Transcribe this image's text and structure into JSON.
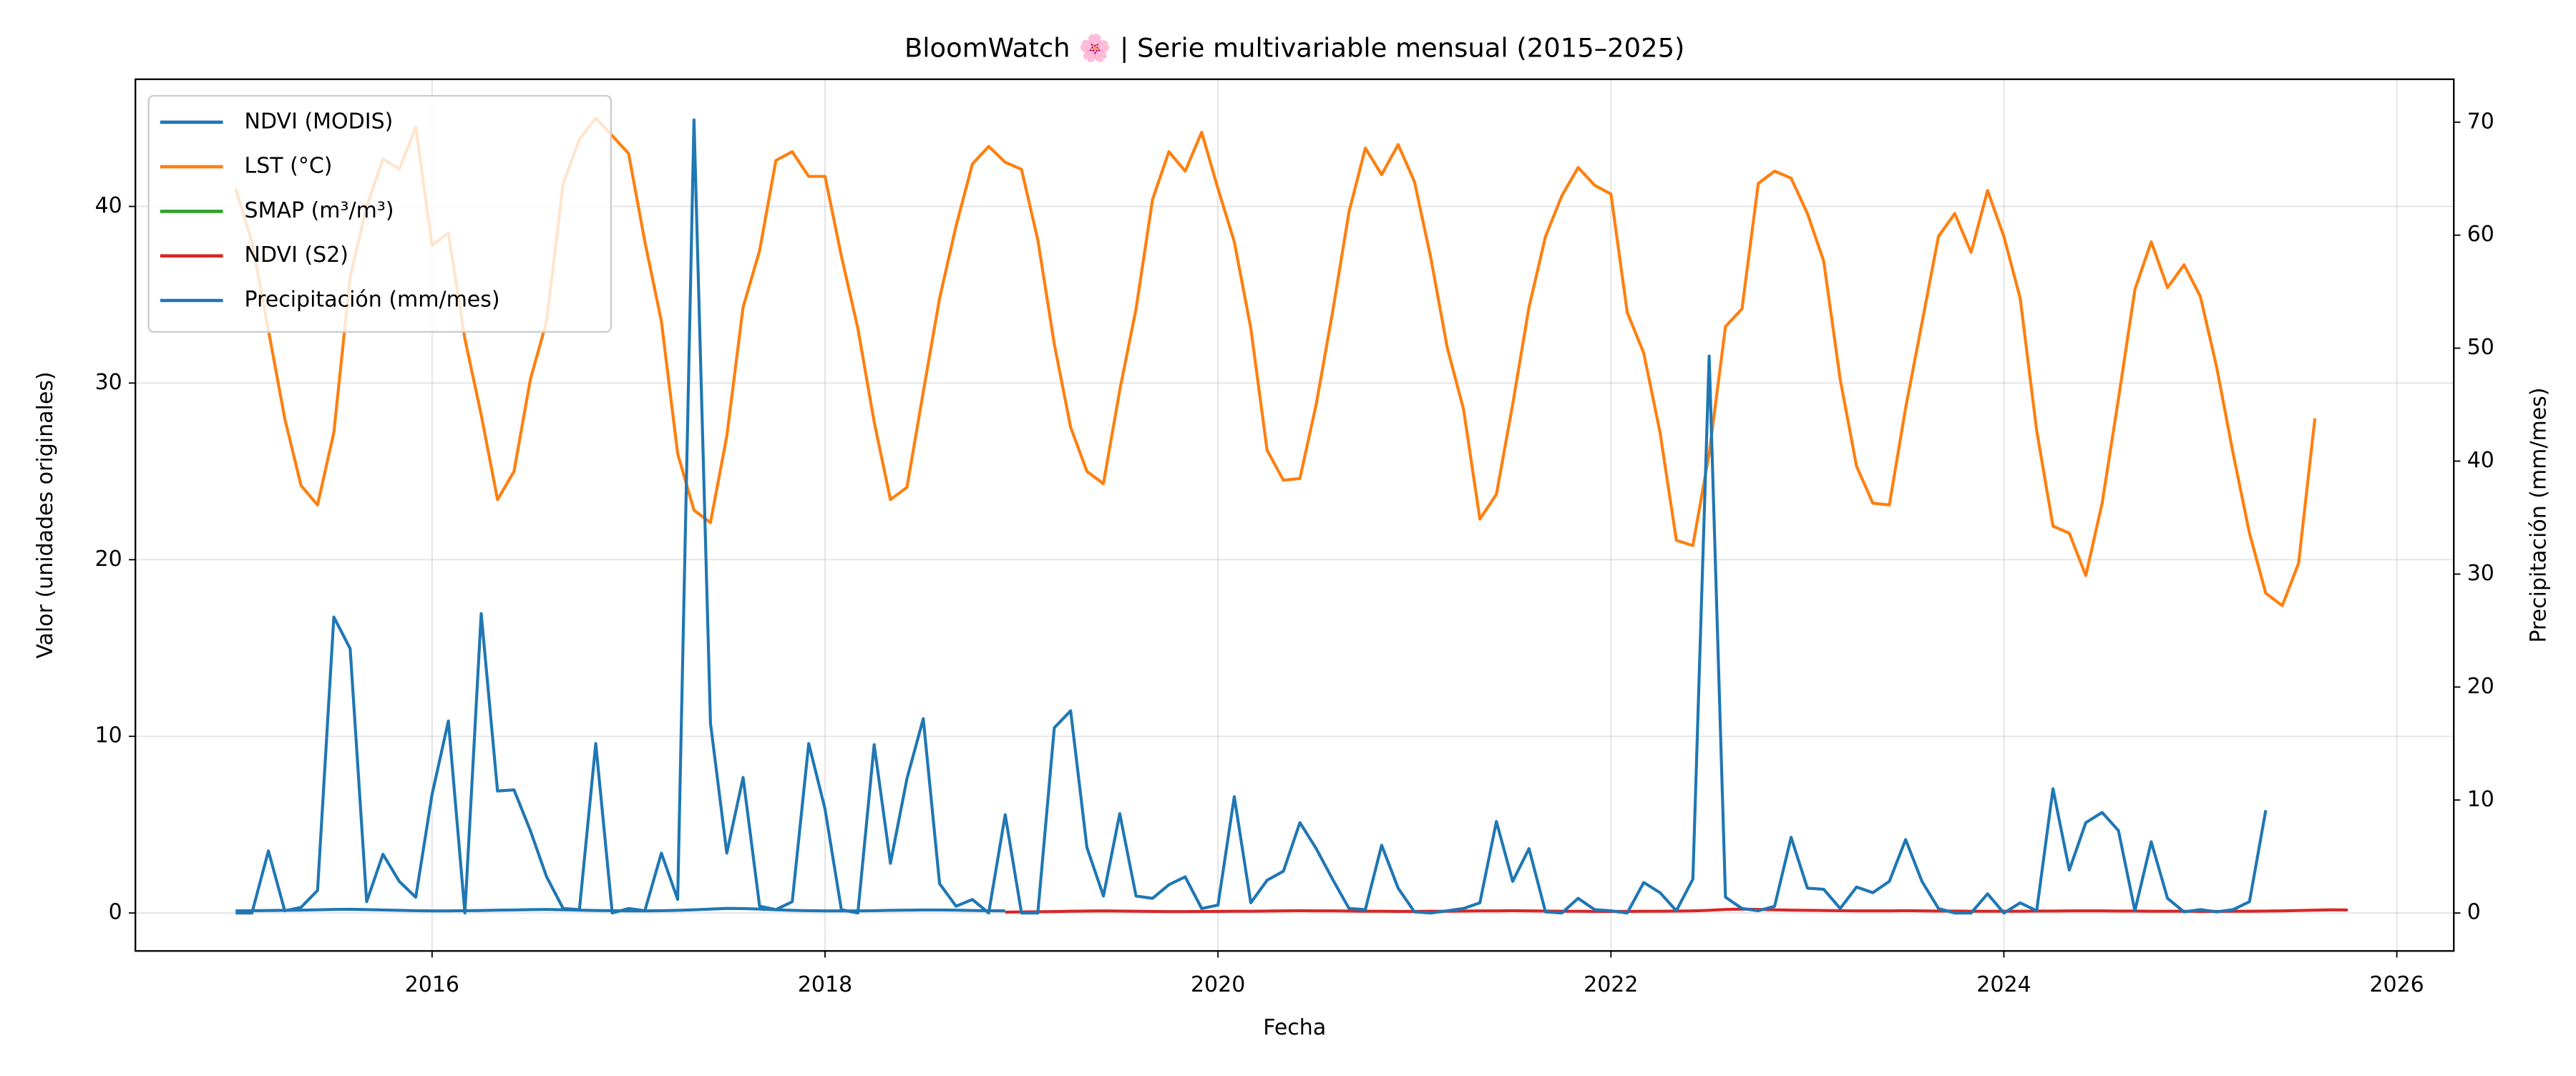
{
  "chart_data": {
    "type": "line",
    "title": "BloomWatch 🌸 | Serie multivariable mensual (2015–2025)",
    "xlabel": "Fecha",
    "ylabel": "Valor (unidades originales)",
    "y2label": "Precipitación (mm/mes)",
    "x": [
      2015.0,
      2015.083,
      2015.167,
      2015.25,
      2015.333,
      2015.417,
      2015.5,
      2015.583,
      2015.667,
      2015.75,
      2015.833,
      2015.917,
      2016.0,
      2016.083,
      2016.167,
      2016.25,
      2016.333,
      2016.417,
      2016.5,
      2016.583,
      2016.667,
      2016.75,
      2016.833,
      2016.917,
      2017.0,
      2017.083,
      2017.167,
      2017.25,
      2017.333,
      2017.417,
      2017.5,
      2017.583,
      2017.667,
      2017.75,
      2017.833,
      2017.917,
      2018.0,
      2018.083,
      2018.167,
      2018.25,
      2018.333,
      2018.417,
      2018.5,
      2018.583,
      2018.667,
      2018.75,
      2018.833,
      2018.917,
      2019.0,
      2019.083,
      2019.167,
      2019.25,
      2019.333,
      2019.417,
      2019.5,
      2019.583,
      2019.667,
      2019.75,
      2019.833,
      2019.917,
      2020.0,
      2020.083,
      2020.167,
      2020.25,
      2020.333,
      2020.417,
      2020.5,
      2020.583,
      2020.667,
      2020.75,
      2020.833,
      2020.917,
      2021.0,
      2021.083,
      2021.167,
      2021.25,
      2021.333,
      2021.417,
      2021.5,
      2021.583,
      2021.667,
      2021.75,
      2021.833,
      2021.917,
      2022.0,
      2022.083,
      2022.167,
      2022.25,
      2022.333,
      2022.417,
      2022.5,
      2022.583,
      2022.667,
      2022.75,
      2022.833,
      2022.917,
      2023.0,
      2023.083,
      2023.167,
      2023.25,
      2023.333,
      2023.417,
      2023.5,
      2023.583,
      2023.667,
      2023.75,
      2023.833,
      2023.917,
      2024.0,
      2024.083,
      2024.167,
      2024.25,
      2024.333,
      2024.417,
      2024.5,
      2024.583,
      2024.667,
      2024.75,
      2024.833,
      2024.917,
      2025.0,
      2025.083,
      2025.167,
      2025.25,
      2025.333,
      2025.417,
      2025.5,
      2025.583,
      2025.667,
      2025.75
    ],
    "series": [
      {
        "name": "NDVI (MODIS)",
        "color": "#1f77b4",
        "axis": "y",
        "values": [
          0.12,
          0.13,
          0.14,
          0.15,
          0.16,
          0.18,
          0.2,
          0.21,
          0.19,
          0.17,
          0.15,
          0.13,
          0.12,
          0.12,
          0.13,
          0.14,
          0.16,
          0.17,
          0.19,
          0.2,
          0.18,
          0.16,
          0.14,
          0.13,
          0.12,
          0.12,
          0.13,
          0.15,
          0.18,
          0.22,
          0.26,
          0.25,
          0.22,
          0.18,
          0.15,
          0.13,
          0.12,
          0.12,
          0.12,
          0.13,
          0.15,
          0.16,
          0.17,
          0.17,
          0.16,
          0.14,
          0.13,
          0.12,
          null,
          null,
          null,
          null,
          null,
          null,
          null,
          null,
          null,
          null,
          null,
          null,
          null,
          null,
          null,
          null,
          null,
          null,
          null,
          null,
          null,
          null,
          null,
          null,
          null,
          null,
          null,
          null,
          null,
          null,
          null,
          null,
          null,
          null,
          null,
          null,
          null,
          null,
          null,
          null,
          null,
          null,
          null,
          null,
          null,
          null,
          null,
          null,
          null,
          null,
          null,
          null,
          null,
          null,
          null,
          null,
          null,
          null,
          null,
          null,
          null,
          null,
          null,
          null,
          null,
          null,
          null,
          null,
          null,
          null,
          null,
          null,
          null,
          null,
          null,
          null,
          null,
          null,
          null,
          null,
          null,
          null
        ]
      },
      {
        "name": "LST (°C)",
        "color": "#ff7f0e",
        "axis": "y",
        "values": [
          41,
          38,
          33,
          28,
          24.2,
          23.1,
          27.2,
          36,
          40,
          42.7,
          42.1,
          44.5,
          37.8,
          38.5,
          32.5,
          28.2,
          23.4,
          25,
          30.2,
          33.5,
          41.3,
          43.8,
          45,
          44,
          43,
          38,
          33.5,
          26,
          22.8,
          22.1,
          27,
          34.3,
          37.5,
          42.6,
          43.1,
          41.7,
          41.7,
          37.2,
          33.1,
          27.8,
          23.4,
          24.1,
          29.5,
          34.8,
          38.9,
          42.4,
          43.4,
          42.5,
          42.1,
          38.1,
          32.2,
          27.5,
          25,
          24.3,
          29.6,
          34.2,
          40.4,
          43.1,
          42,
          44.2,
          41,
          38,
          33.1,
          26.2,
          24.5,
          24.6,
          28.8,
          34,
          39.7,
          43.3,
          41.8,
          43.5,
          41.4,
          37.1,
          32,
          28.5,
          22.3,
          23.7,
          28.8,
          34.3,
          38.3,
          40.6,
          42.2,
          41.2,
          40.7,
          34,
          31.7,
          27.2,
          21.1,
          20.8,
          26,
          33.2,
          34.2,
          41.3,
          42,
          41.6,
          39.6,
          36.9,
          30.2,
          25.3,
          23.2,
          23.1,
          28.6,
          33.4,
          38.3,
          39.6,
          37.4,
          40.9,
          38.3,
          34.8,
          27.3,
          21.9,
          21.5,
          19.1,
          23.2,
          29.1,
          35.3,
          38,
          35.4,
          36.7,
          34.9,
          30.9,
          26,
          21.5,
          18.1,
          17.4,
          19.8,
          28,
          null,
          null
        ]
      },
      {
        "name": "SMAP (m³/m³)",
        "color": "#2ca02c",
        "axis": "y",
        "values": [
          null,
          null,
          null,
          null,
          null,
          null,
          null,
          null,
          null,
          null,
          null,
          null,
          null,
          null,
          null,
          null,
          null,
          null,
          null,
          null,
          null,
          null,
          null,
          null,
          null,
          null,
          null,
          null,
          null,
          null,
          null,
          null,
          null,
          null,
          null,
          null,
          null,
          null,
          null,
          null,
          null,
          null,
          null,
          null,
          null,
          null,
          null,
          null,
          null,
          null,
          null,
          null,
          null,
          null,
          null,
          null,
          null,
          null,
          null,
          null,
          null,
          null,
          null,
          null,
          null,
          null,
          null,
          null,
          null,
          null,
          null,
          null,
          null,
          null,
          null,
          null,
          null,
          null,
          null,
          null,
          null,
          null,
          null,
          null,
          null,
          null,
          null,
          null,
          null,
          null,
          null,
          null,
          null,
          null,
          null,
          null,
          null,
          null,
          null,
          null,
          null,
          null,
          null,
          null,
          null,
          null,
          null,
          null,
          null,
          null,
          null,
          null,
          null,
          null,
          null,
          null,
          null,
          null,
          null,
          null,
          null,
          null,
          null,
          null,
          null,
          null,
          null,
          null,
          null,
          null
        ]
      },
      {
        "name": "NDVI (S2)",
        "color": "#d62728",
        "axis": "y",
        "values": [
          null,
          null,
          null,
          null,
          null,
          null,
          null,
          null,
          null,
          null,
          null,
          null,
          null,
          null,
          null,
          null,
          null,
          null,
          null,
          null,
          null,
          null,
          null,
          null,
          null,
          null,
          null,
          null,
          null,
          null,
          null,
          null,
          null,
          null,
          null,
          null,
          null,
          null,
          null,
          null,
          null,
          null,
          null,
          null,
          null,
          null,
          null,
          0.05,
          0.06,
          0.07,
          0.08,
          0.1,
          0.11,
          0.12,
          0.11,
          0.1,
          0.09,
          0.08,
          0.08,
          0.09,
          0.09,
          0.1,
          0.1,
          0.11,
          0.12,
          0.13,
          0.12,
          0.12,
          0.11,
          0.1,
          0.1,
          0.09,
          0.09,
          0.1,
          0.1,
          0.11,
          0.12,
          0.12,
          0.13,
          0.12,
          0.11,
          0.1,
          0.1,
          0.09,
          0.09,
          0.09,
          0.1,
          0.1,
          0.11,
          0.12,
          0.15,
          0.2,
          0.22,
          0.2,
          0.18,
          0.16,
          0.15,
          0.14,
          0.13,
          0.12,
          0.12,
          0.12,
          0.13,
          0.12,
          0.11,
          0.11,
          0.1,
          0.1,
          0.1,
          0.1,
          0.11,
          0.11,
          0.12,
          0.12,
          0.12,
          0.11,
          0.11,
          0.1,
          0.1,
          0.1,
          0.09,
          0.09,
          0.1,
          0.1,
          0.11,
          0.12,
          0.14,
          0.16,
          0.18,
          0.17
        ]
      },
      {
        "name": "Precipitación (mm/mes)",
        "color": "#1f77b4",
        "axis": "y2",
        "values": [
          0,
          0,
          5.5,
          0.2,
          0.5,
          2,
          26.2,
          23.4,
          1,
          5.2,
          2.8,
          1.4,
          10.5,
          17,
          0,
          26.5,
          10.8,
          10.9,
          7.3,
          3.2,
          0.4,
          0.3,
          15,
          0,
          0.4,
          0.2,
          5.3,
          1.2,
          70.2,
          16.8,
          5.3,
          12,
          0.6,
          0.3,
          1,
          15,
          9.2,
          0.3,
          0,
          14.9,
          4.4,
          11.9,
          17.2,
          2.6,
          0.6,
          1.2,
          0,
          8.7,
          0,
          0,
          16.4,
          17.9,
          5.8,
          1.5,
          8.8,
          1.5,
          1.3,
          2.5,
          3.2,
          0.4,
          0.7,
          10.3,
          0.9,
          2.9,
          3.7,
          8,
          5.7,
          3,
          0.4,
          0.3,
          6,
          2.2,
          0.1,
          0,
          0.2,
          0.4,
          0.9,
          8.1,
          2.8,
          5.7,
          0.1,
          0,
          1.3,
          0.3,
          0.2,
          0,
          2.7,
          1.8,
          0.2,
          3,
          49.3,
          1.4,
          0.4,
          0.2,
          0.6,
          6.7,
          2.2,
          2.1,
          0.4,
          2.3,
          1.8,
          2.8,
          6.5,
          2.8,
          0.4,
          0,
          0,
          1.7,
          0,
          0.9,
          0.2,
          11,
          3.8,
          8,
          8.9,
          7.3,
          0.2,
          6.3,
          1.3,
          0.1,
          0.3,
          0.1,
          0.3,
          1,
          9.1,
          null,
          null,
          null,
          null,
          null
        ]
      }
    ],
    "xlim": [
      2014.49,
      2026.29
    ],
    "xticks": [
      2016,
      2018,
      2020,
      2022,
      2024,
      2026
    ],
    "ylim": [
      -2.15,
      47.2
    ],
    "yticks": [
      0,
      10,
      20,
      30,
      40
    ],
    "y2lim": [
      -3.36,
      73.8
    ],
    "y2ticks": [
      0,
      10,
      20,
      30,
      40,
      50,
      60,
      70
    ],
    "grid": true,
    "legend": "upper left"
  }
}
